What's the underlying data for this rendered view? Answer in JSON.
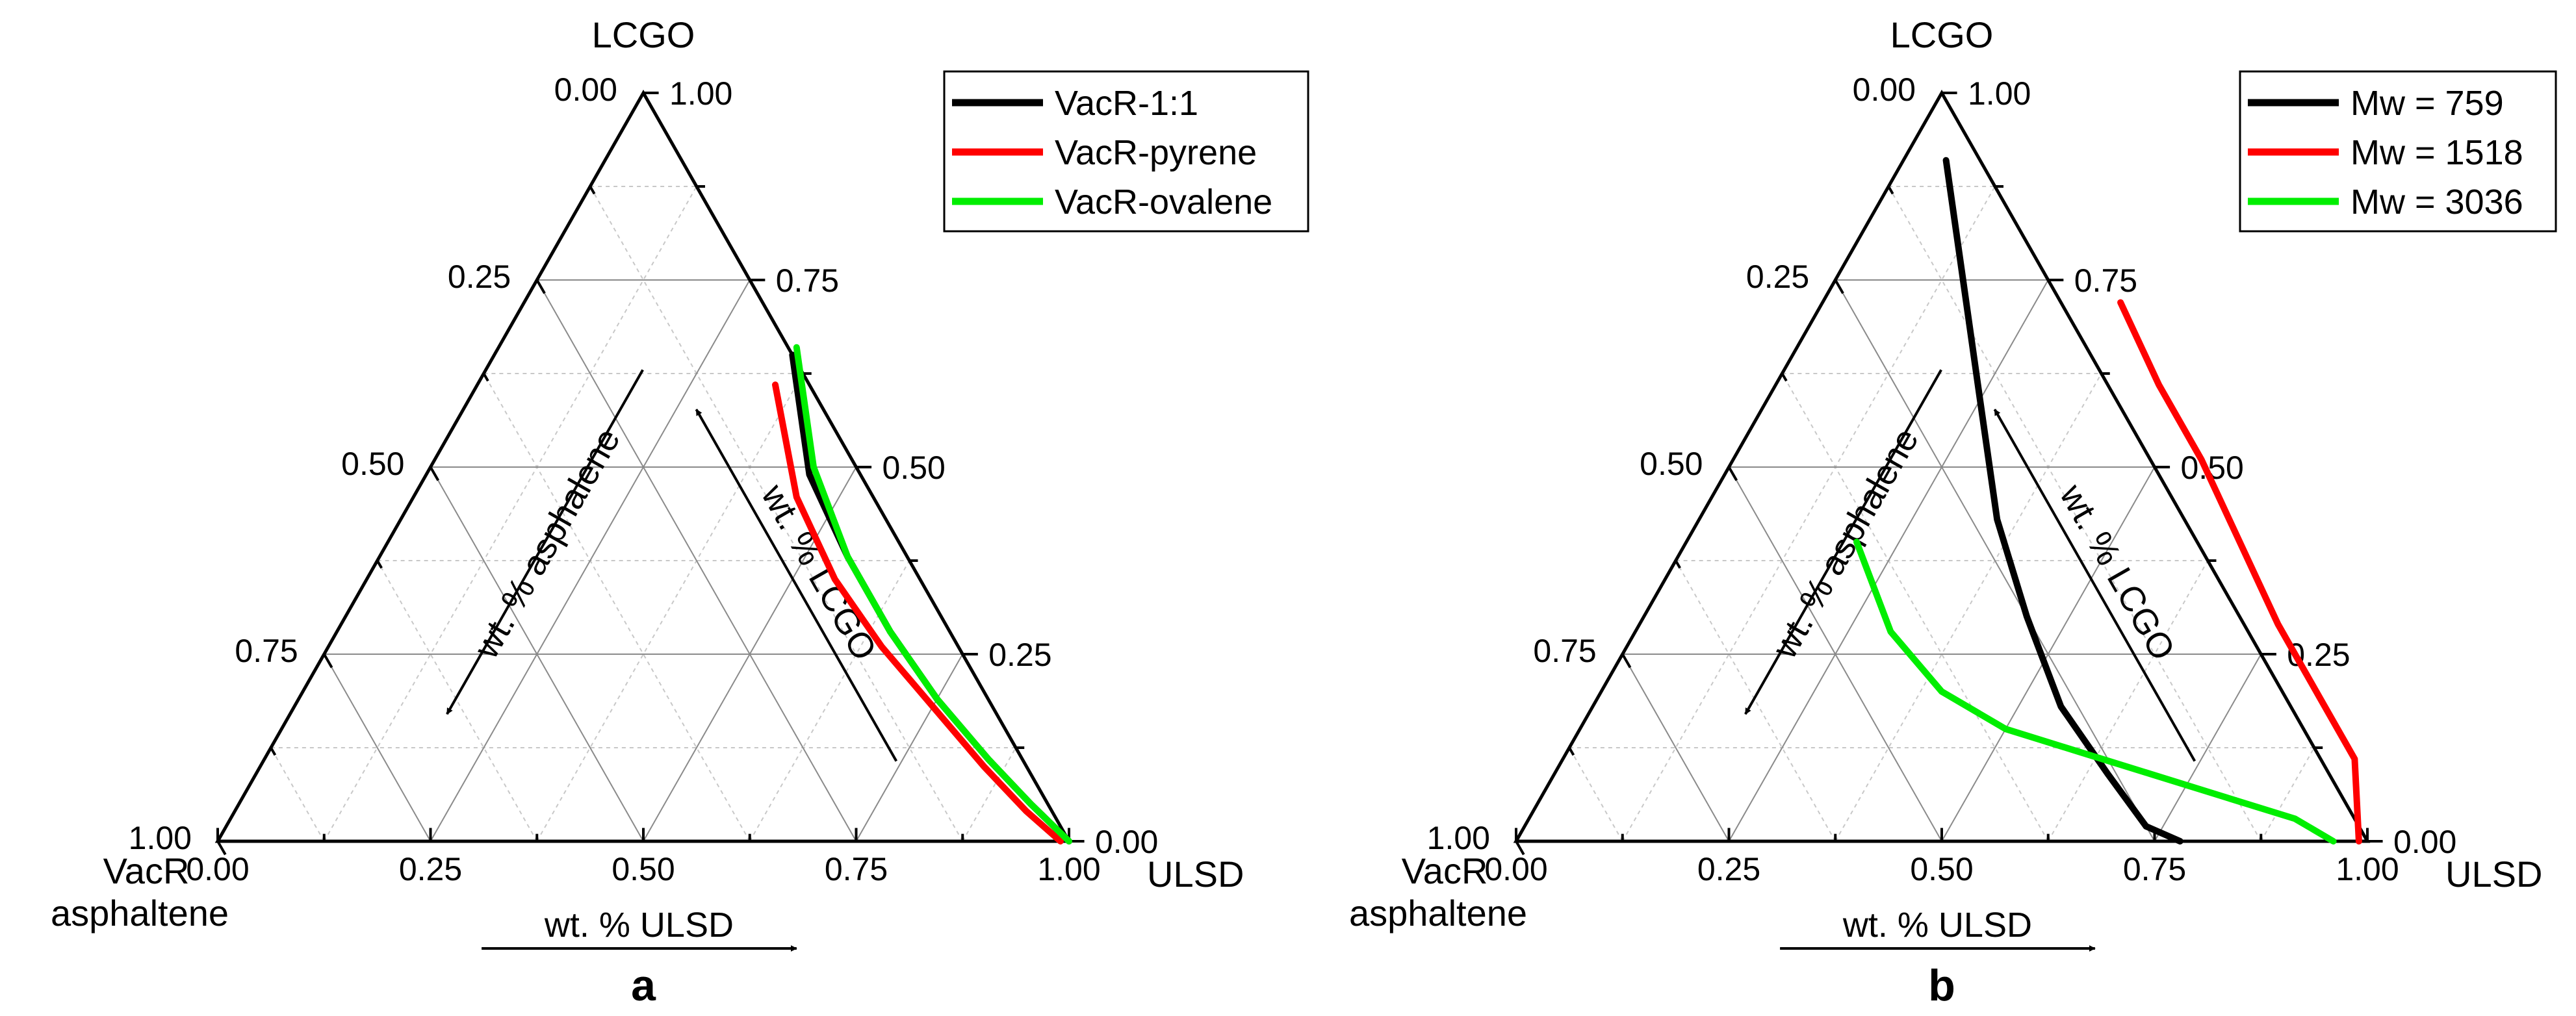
{
  "chart_data": [
    {
      "type": "line",
      "subplot_label": "a",
      "vertex_labels": {
        "top": "LCGO",
        "right": "ULSD",
        "left_line1": "VacR",
        "left_line2": "asphaltene"
      },
      "axis_titles": {
        "left": "wt. % asphalene",
        "right": "wt. % LCGO",
        "bottom": "wt. % ULSD"
      },
      "ticks": [
        "0.00",
        "0.25",
        "0.50",
        "0.75",
        "1.00"
      ],
      "legend": [
        "VacR-1:1",
        "VacR-pyrene",
        "VacR-ovalene"
      ],
      "colors": [
        "#000000",
        "#ff0000",
        "#00ee00"
      ],
      "series": [
        {
          "name": "VacR-1:1",
          "points": [
            [
              0.35,
              0.65
            ],
            [
              0.45,
              0.49
            ],
            [
              0.55,
              0.38
            ],
            [
              0.65,
              0.28
            ],
            [
              0.75,
              0.19
            ],
            [
              0.85,
              0.11
            ],
            [
              0.93,
              0.05
            ],
            [
              1.0,
              0.0
            ]
          ]
        },
        {
          "name": "VacR-pyrene",
          "points": [
            [
              0.35,
              0.61
            ],
            [
              0.45,
              0.46
            ],
            [
              0.55,
              0.35
            ],
            [
              0.65,
              0.26
            ],
            [
              0.75,
              0.18
            ],
            [
              0.85,
              0.1
            ],
            [
              0.93,
              0.04
            ],
            [
              0.99,
              0.0
            ]
          ]
        },
        {
          "name": "VacR-ovalene",
          "points": [
            [
              0.35,
              0.66
            ],
            [
              0.45,
              0.5
            ],
            [
              0.55,
              0.38
            ],
            [
              0.65,
              0.28
            ],
            [
              0.75,
              0.19
            ],
            [
              0.85,
              0.11
            ],
            [
              0.93,
              0.05
            ],
            [
              1.0,
              0.0
            ]
          ]
        }
      ]
    },
    {
      "type": "line",
      "subplot_label": "b",
      "vertex_labels": {
        "top": "LCGO",
        "right": "ULSD",
        "left_line1": "VacR",
        "left_line2": "asphaltene"
      },
      "axis_titles": {
        "left": "wt. % asphalene",
        "right": "wt. % LCGO",
        "bottom": "wt. % ULSD"
      },
      "ticks": [
        "0.00",
        "0.25",
        "0.50",
        "0.75",
        "1.00"
      ],
      "legend": [
        "Mw = 759",
        "Mw = 1518",
        "Mw = 3036"
      ],
      "colors": [
        "#000000",
        "#ff0000",
        "#00ee00"
      ],
      "series": [
        {
          "name": "Mw = 759",
          "points": [
            [
              0.05,
              0.91
            ],
            [
              0.15,
              0.75
            ],
            [
              0.25,
              0.59
            ],
            [
              0.35,
              0.43
            ],
            [
              0.45,
              0.3
            ],
            [
              0.55,
              0.18
            ],
            [
              0.65,
              0.09
            ],
            [
              0.73,
              0.02
            ],
            [
              0.78,
              0.0
            ]
          ]
        },
        {
          "name": "Mw = 1518",
          "points": [
            [
              0.35,
              0.72
            ],
            [
              0.45,
              0.61
            ],
            [
              0.55,
              0.51
            ],
            [
              0.65,
              0.4
            ],
            [
              0.75,
              0.29
            ],
            [
              0.85,
              0.19
            ],
            [
              0.93,
              0.11
            ],
            [
              0.99,
              0.0
            ]
          ]
        },
        {
          "name": "Mw = 3036",
          "points": [
            [
              0.2,
              0.4
            ],
            [
              0.3,
              0.28
            ],
            [
              0.4,
              0.2
            ],
            [
              0.5,
              0.15
            ],
            [
              0.6,
              0.12
            ],
            [
              0.7,
              0.09
            ],
            [
              0.8,
              0.06
            ],
            [
              0.9,
              0.03
            ],
            [
              0.96,
              0.0
            ]
          ]
        }
      ]
    }
  ]
}
